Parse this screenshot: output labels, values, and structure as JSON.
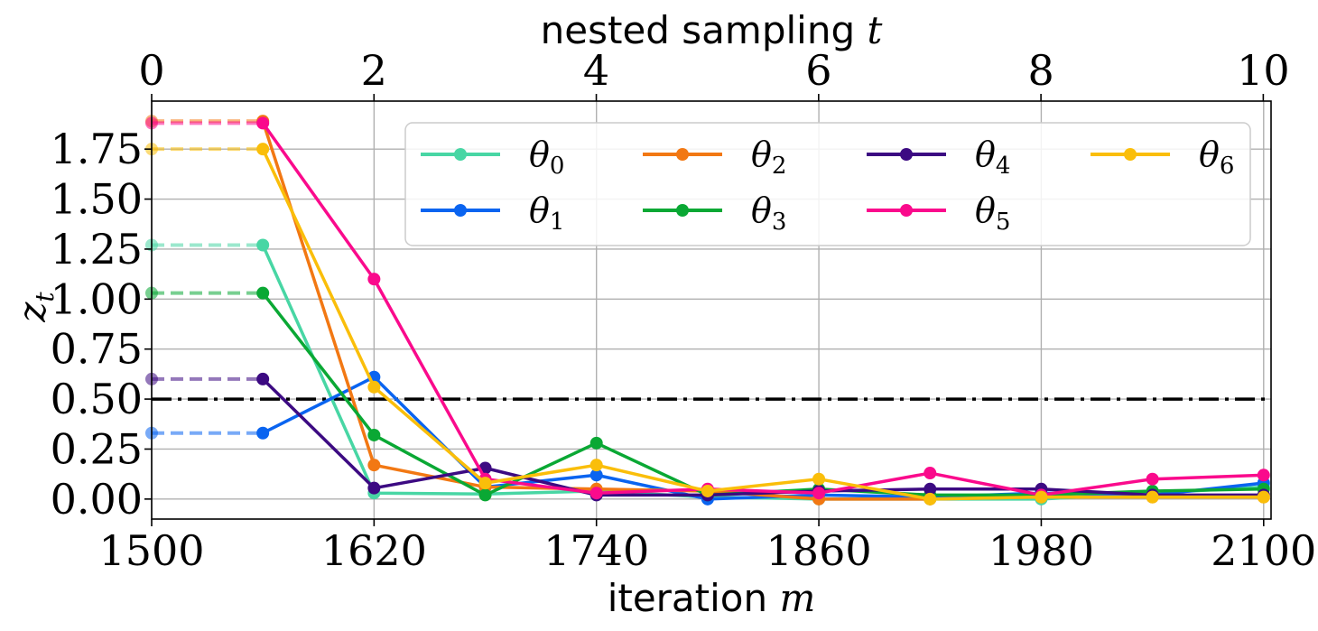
{
  "chart_data": {
    "type": "line",
    "xlabel_prefix": "iteration",
    "xlabel_var": "m",
    "x2label_prefix": "nested sampling",
    "x2label_var": "t",
    "ylabel_var": "z",
    "ylabel_sub": "t",
    "xlim": [
      1500,
      2104
    ],
    "x_ticks": [
      1500,
      1620,
      1740,
      1860,
      1980,
      2100
    ],
    "x_tick_labels": [
      "1500",
      "1620",
      "1740",
      "1860",
      "1980",
      "2100"
    ],
    "x2lim": [
      0,
      10.07
    ],
    "x2_ticks": [
      0,
      2,
      4,
      6,
      8,
      10
    ],
    "x2_tick_labels": [
      "0",
      "2",
      "4",
      "6",
      "8",
      "10"
    ],
    "ylim": [
      -0.1,
      1.99
    ],
    "y_ticks": [
      0,
      0.25,
      0.5,
      0.75,
      1.0,
      1.25,
      1.5,
      1.75
    ],
    "y_tick_labels": [
      "0.00",
      "0.25",
      "0.50",
      "0.75",
      "1.00",
      "1.25",
      "1.50",
      "1.75"
    ],
    "grid": true,
    "threshold": 0.5,
    "legend_position": "top-right",
    "legend_columns": 4,
    "x": [
      1560,
      1620,
      1680,
      1740,
      1800,
      1860,
      1920,
      1980,
      2040,
      2100
    ],
    "dashed_x": [
      1500,
      1560
    ],
    "series": [
      {
        "name": "θ",
        "sub": "0",
        "color": "#48d6a4",
        "values": [
          1.27,
          0.03,
          0.025,
          0.04,
          0.01,
          0.0,
          0.0,
          0.0,
          0.03,
          0.06
        ]
      },
      {
        "name": "θ",
        "sub": "1",
        "color": "#0a64f0",
        "values": [
          0.33,
          0.61,
          0.06,
          0.12,
          0.0,
          0.02,
          0.01,
          0.03,
          0.02,
          0.08
        ]
      },
      {
        "name": "θ",
        "sub": "2",
        "color": "#f27813",
        "values": [
          1.89,
          0.17,
          0.06,
          0.05,
          0.04,
          0.0,
          0.0,
          0.01,
          0.01,
          0.01
        ]
      },
      {
        "name": "θ",
        "sub": "3",
        "color": "#0aa834",
        "values": [
          1.03,
          0.32,
          0.02,
          0.28,
          0.02,
          0.05,
          0.02,
          0.02,
          0.04,
          0.05
        ]
      },
      {
        "name": "θ",
        "sub": "4",
        "color": "#3c0a82",
        "values": [
          0.6,
          0.055,
          0.155,
          0.02,
          0.02,
          0.04,
          0.05,
          0.05,
          0.02,
          0.02
        ]
      },
      {
        "name": "θ",
        "sub": "5",
        "color": "#fa0a8c",
        "values": [
          1.88,
          1.1,
          0.1,
          0.03,
          0.05,
          0.03,
          0.13,
          0.02,
          0.1,
          0.12
        ]
      },
      {
        "name": "θ",
        "sub": "6",
        "color": "#fabe0a",
        "values": [
          1.75,
          0.56,
          0.08,
          0.17,
          0.04,
          0.1,
          0.0,
          0.01,
          0.01,
          0.01
        ]
      }
    ]
  }
}
